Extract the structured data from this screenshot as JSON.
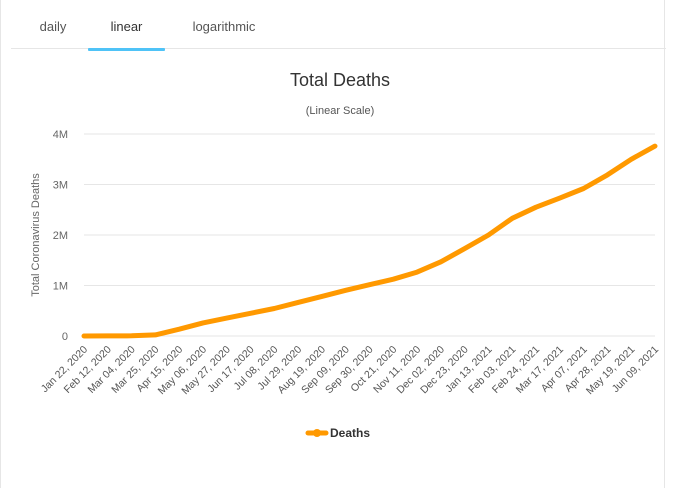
{
  "tabs": [
    {
      "label": "daily",
      "active": false
    },
    {
      "label": "linear",
      "active": true
    },
    {
      "label": "logarithmic",
      "active": false
    }
  ],
  "colors": {
    "accent": "#4fc3f7",
    "series": "#ff9900"
  },
  "chart_data": {
    "type": "line",
    "title": "Total Deaths",
    "subtitle": "(Linear Scale)",
    "xlabel": "",
    "ylabel": "Total Coronavirus Deaths",
    "ylim": [
      0,
      4000000
    ],
    "yticks": [
      {
        "value": 0,
        "label": "0"
      },
      {
        "value": 1000000,
        "label": "1M"
      },
      {
        "value": 2000000,
        "label": "2M"
      },
      {
        "value": 3000000,
        "label": "3M"
      },
      {
        "value": 4000000,
        "label": "4M"
      }
    ],
    "x": [
      "Jan 22, 2020",
      "Feb 12, 2020",
      "Mar 04, 2020",
      "Mar 25, 2020",
      "Apr 15, 2020",
      "May 06, 2020",
      "May 27, 2020",
      "Jun 17, 2020",
      "Jul 08, 2020",
      "Jul 29, 2020",
      "Aug 19, 2020",
      "Sep 09, 2020",
      "Sep 30, 2020",
      "Oct 21, 2020",
      "Nov 11, 2020",
      "Dec 02, 2020",
      "Dec 23, 2020",
      "Jan 13, 2021",
      "Feb 03, 2021",
      "Feb 24, 2021",
      "Mar 17, 2021",
      "Apr 07, 2021",
      "Apr 28, 2021",
      "May 19, 2021",
      "Jun 09, 2021"
    ],
    "series": [
      {
        "name": "Deaths",
        "values": [
          17,
          1770,
          3300,
          22000,
          134000,
          260000,
          355000,
          450000,
          545000,
          665000,
          785000,
          905000,
          1015000,
          1125000,
          1265000,
          1470000,
          1730000,
          2000000,
          2330000,
          2550000,
          2730000,
          2920000,
          3190000,
          3500000,
          3760000
        ]
      }
    ],
    "grid": true,
    "legend": "bottom-center"
  }
}
